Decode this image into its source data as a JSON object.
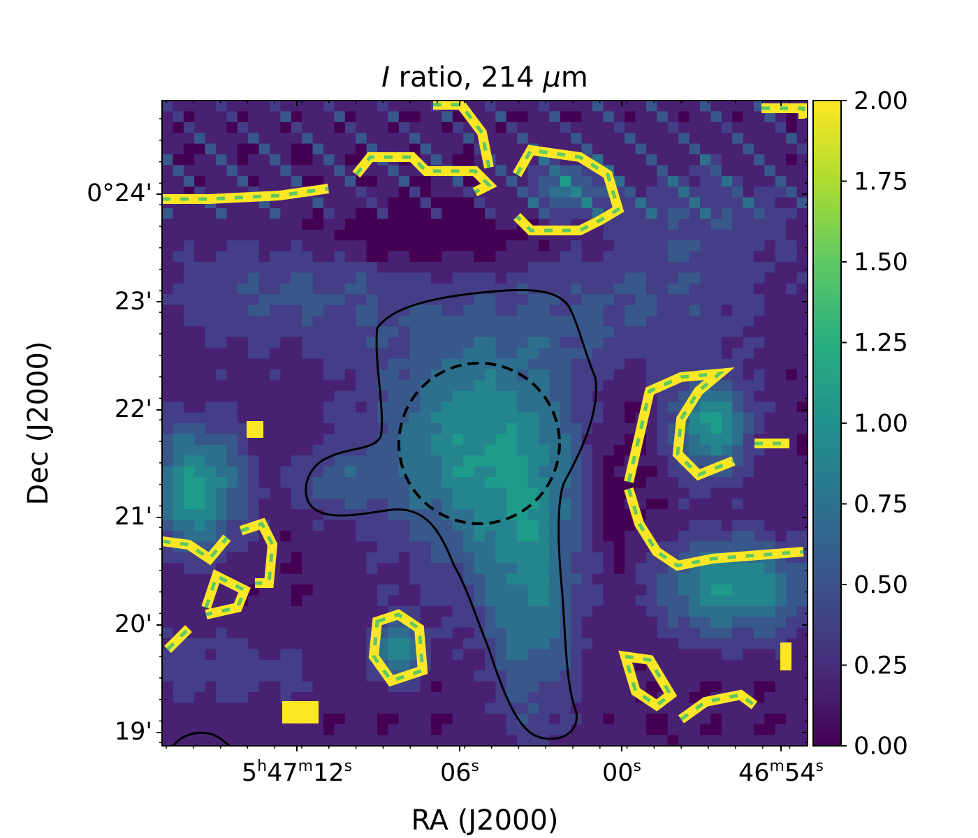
{
  "chart_data": {
    "type": "heatmap",
    "title": {
      "symbol": "I",
      "text": " ratio, 214 ",
      "unit_prefix": "μ",
      "unit": "m"
    },
    "xlabel": "RA (J2000)",
    "ylabel": "Dec (J2000)",
    "x_ticks": [
      {
        "value_s": 12,
        "h": "5",
        "m": "47",
        "s": "12"
      },
      {
        "value_s": 6,
        "s": "06"
      },
      {
        "value_s": 0,
        "s": "00"
      },
      {
        "value_s": -6,
        "m": "46",
        "s": "54"
      }
    ],
    "x_units": {
      "h": "h",
      "m": "m",
      "s": "s"
    },
    "y_ticks": [
      {
        "value_arcmin": 24,
        "label": "0°24'"
      },
      {
        "value_arcmin": 23,
        "label": "23'"
      },
      {
        "value_arcmin": 22,
        "label": "22'"
      },
      {
        "value_arcmin": 21,
        "label": "21'"
      },
      {
        "value_arcmin": 20,
        "label": "20'"
      },
      {
        "value_arcmin": 19,
        "label": "19'"
      }
    ],
    "colorbar": {
      "colormap": "viridis",
      "vmin": 0,
      "vmax": 2,
      "ticks": [
        "0.00",
        "0.25",
        "0.50",
        "0.75",
        "1.00",
        "1.25",
        "1.50",
        "1.75",
        "2.00"
      ]
    },
    "overlays": {
      "contour": "solid black",
      "aperture": "dashed black circle"
    }
  }
}
